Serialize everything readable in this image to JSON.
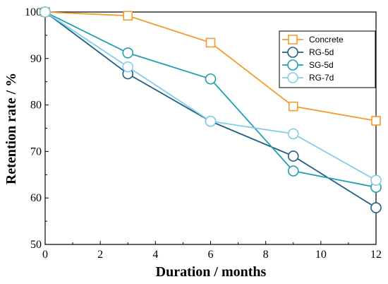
{
  "chart_data": {
    "type": "line",
    "xlabel": "Duration / months",
    "ylabel": "Retention rate / %",
    "xlim": [
      0,
      12
    ],
    "ylim": [
      50,
      100
    ],
    "xticks": [
      0,
      2,
      4,
      6,
      8,
      10,
      12
    ],
    "yticks": [
      50,
      60,
      70,
      80,
      90,
      100
    ],
    "grid": false,
    "legend_position": "top-right",
    "series": [
      {
        "name": "Concrete",
        "color": "#f39a2e",
        "marker": "square",
        "x": [
          0,
          3,
          6,
          9,
          12
        ],
        "y": [
          100,
          99.2,
          93.4,
          79.7,
          76.6
        ]
      },
      {
        "name": "RG-5d",
        "color": "#1f5f85",
        "marker": "circle",
        "x": [
          0,
          3,
          6,
          9,
          12
        ],
        "y": [
          100,
          86.7,
          76.5,
          69.0,
          57.9
        ]
      },
      {
        "name": "SG-5d",
        "color": "#1f9fb0",
        "marker": "circle",
        "x": [
          0,
          3,
          6,
          9,
          12
        ],
        "y": [
          100,
          91.2,
          85.6,
          65.8,
          62.3
        ]
      },
      {
        "name": "RG-7d",
        "color": "#85cde6",
        "marker": "circle",
        "x": [
          0,
          3,
          6,
          9,
          12
        ],
        "y": [
          100,
          88.2,
          76.5,
          73.8,
          63.8
        ]
      }
    ]
  }
}
